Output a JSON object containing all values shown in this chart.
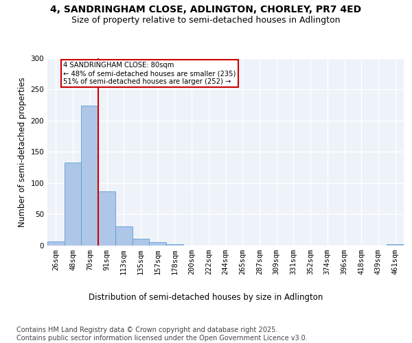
{
  "title_line1": "4, SANDRINGHAM CLOSE, ADLINGTON, CHORLEY, PR7 4ED",
  "title_line2": "Size of property relative to semi-detached houses in Adlington",
  "xlabel": "Distribution of semi-detached houses by size in Adlington",
  "ylabel": "Number of semi-detached properties",
  "footer": "Contains HM Land Registry data © Crown copyright and database right 2025.\nContains public sector information licensed under the Open Government Licence v3.0.",
  "bin_labels": [
    "26sqm",
    "48sqm",
    "70sqm",
    "91sqm",
    "113sqm",
    "135sqm",
    "157sqm",
    "178sqm",
    "200sqm",
    "222sqm",
    "244sqm",
    "265sqm",
    "287sqm",
    "309sqm",
    "331sqm",
    "352sqm",
    "374sqm",
    "396sqm",
    "418sqm",
    "439sqm",
    "461sqm"
  ],
  "bar_values": [
    6,
    133,
    224,
    86,
    30,
    11,
    5,
    2,
    0,
    0,
    0,
    0,
    0,
    0,
    0,
    0,
    0,
    0,
    0,
    0,
    2
  ],
  "bar_color": "#aec6e8",
  "bar_edge_color": "#5a9fd4",
  "subject_bin_index": 2,
  "annotation_text": "4 SANDRINGHAM CLOSE: 80sqm\n← 48% of semi-detached houses are smaller (235)\n51% of semi-detached houses are larger (252) →",
  "annotation_box_color": "#ffffff",
  "annotation_border_color": "#cc0000",
  "vline_color": "#cc0000",
  "ylim": [
    0,
    300
  ],
  "yticks": [
    0,
    50,
    100,
    150,
    200,
    250,
    300
  ],
  "background_color": "#eef2f9",
  "grid_color": "#ffffff",
  "title_fontsize": 10,
  "subtitle_fontsize": 9,
  "axis_label_fontsize": 8.5,
  "tick_fontsize": 7.5,
  "footer_fontsize": 7
}
